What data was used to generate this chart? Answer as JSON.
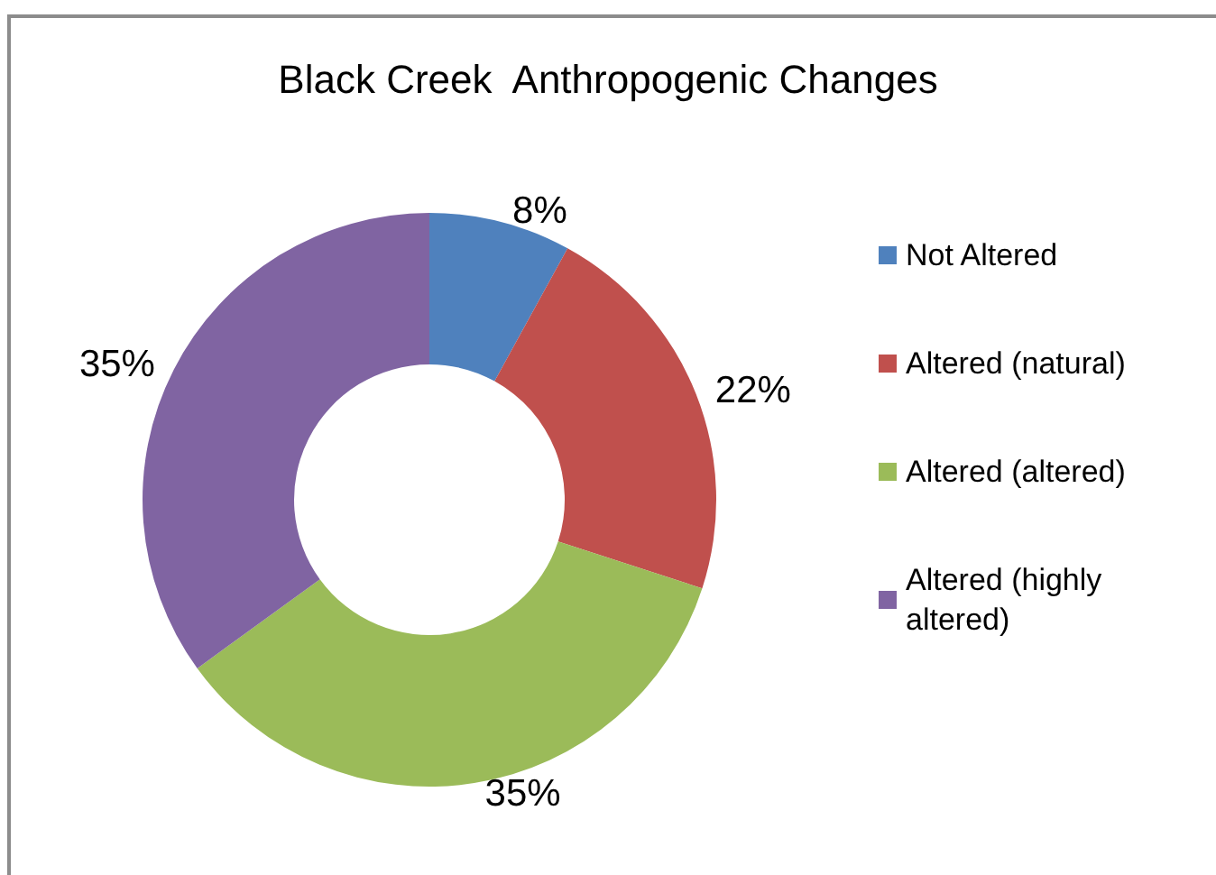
{
  "chart_data": {
    "type": "donut",
    "title": "Black Creek  Anthropogenic Changes",
    "categories": [
      "Not Altered",
      "Altered (natural)",
      "Altered (altered)",
      "Altered (highly altered)"
    ],
    "values": [
      8,
      22,
      35,
      35
    ],
    "colors": [
      "#4f81bd",
      "#c0504d",
      "#9bbb59",
      "#8064a2"
    ],
    "value_labels": [
      "8%",
      "22%",
      "35%",
      "35%"
    ],
    "legend": "right"
  }
}
